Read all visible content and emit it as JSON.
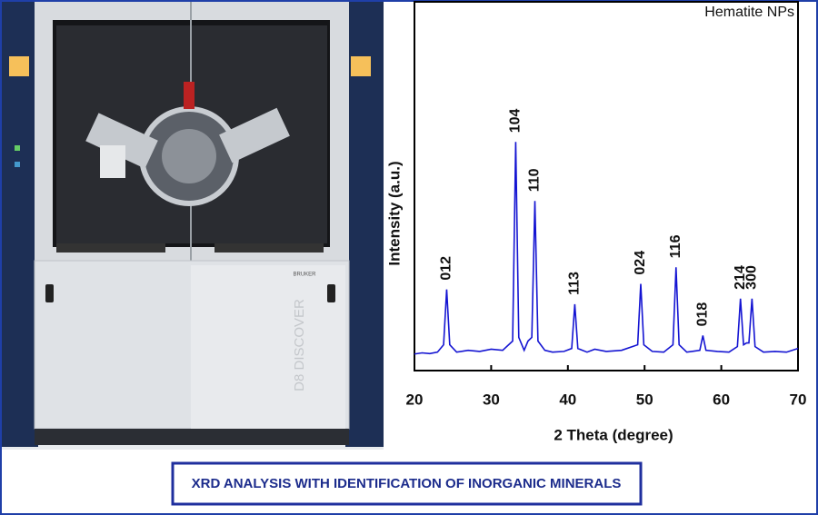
{
  "chart_data": {
    "type": "line",
    "caption": "XRD ANALYSIS WITH IDENTIFICATION OF INORGANIC MINERALS",
    "xlabel": "2 Theta (degree)",
    "ylabel": "Intensity (a.u.)",
    "xlim": [
      20,
      70
    ],
    "xticks": [
      20,
      30,
      40,
      50,
      60,
      70
    ],
    "ylim": [
      0,
      100
    ],
    "x": [
      20,
      21,
      22,
      23,
      23.8,
      24.2,
      24.6,
      25.5,
      27,
      28.5,
      30,
      31.5,
      32.8,
      33.2,
      33.6,
      34.3,
      34.8,
      35.3,
      35.7,
      36.1,
      37,
      38,
      39.5,
      40.5,
      40.9,
      41.3,
      42.5,
      43.5,
      45,
      47,
      49.1,
      49.5,
      49.9,
      51,
      52.5,
      53.7,
      54.1,
      54.5,
      55.5,
      57.2,
      57.6,
      58,
      59.5,
      61,
      62.1,
      62.5,
      62.9,
      63.3,
      63.6,
      64,
      64.4,
      65.5,
      67,
      68.5,
      70
    ],
    "series": [
      {
        "name": "Hematite NPs",
        "color": "#1414d2",
        "values": [
          4.5,
          4.8,
          4.6,
          5,
          7,
          22,
          7,
          5,
          5.5,
          5.2,
          5.8,
          5.5,
          8,
          62,
          9,
          5.5,
          8,
          9,
          46,
          8,
          5.5,
          5,
          5.2,
          6,
          18,
          6,
          5,
          5.8,
          5.2,
          5.5,
          7,
          23.5,
          7,
          5.2,
          5,
          7,
          28,
          7,
          5,
          5.5,
          9.5,
          5.5,
          5.2,
          5,
          6.5,
          19.5,
          7,
          7.5,
          7.5,
          19.5,
          6.5,
          5,
          5.2,
          5,
          6
        ]
      }
    ],
    "annotations": [
      {
        "text": "012",
        "x": 24.2
      },
      {
        "text": "104",
        "x": 33.2
      },
      {
        "text": "110",
        "x": 35.7
      },
      {
        "text": "113",
        "x": 40.9
      },
      {
        "text": "024",
        "x": 49.5
      },
      {
        "text": "116",
        "x": 54.1
      },
      {
        "text": "018",
        "x": 57.6
      },
      {
        "text": "214",
        "x": 62.5
      },
      {
        "text": "300",
        "x": 64
      }
    ]
  },
  "photo": {
    "brand": "BRUKER",
    "label": "D8 DISCOVER"
  }
}
